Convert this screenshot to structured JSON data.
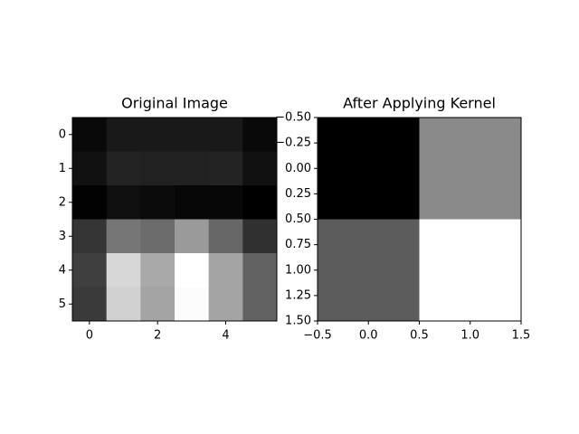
{
  "chart_data": [
    {
      "type": "heatmap",
      "title": "Original Image",
      "cmap": "gray",
      "values": [
        [
          12,
          28,
          28,
          28,
          28,
          12
        ],
        [
          20,
          38,
          36,
          36,
          38,
          20
        ],
        [
          5,
          18,
          14,
          10,
          10,
          3
        ],
        [
          55,
          120,
          110,
          155,
          105,
          50
        ],
        [
          65,
          215,
          170,
          255,
          165,
          100
        ],
        [
          60,
          210,
          165,
          252,
          165,
          100
        ]
      ],
      "xlim": [
        -0.5,
        5.5
      ],
      "ylim": [
        5.5,
        -0.5
      ],
      "xticks": [
        0,
        2,
        4
      ],
      "yticks": [
        0,
        1,
        2,
        3,
        4,
        5
      ]
    },
    {
      "type": "heatmap",
      "title": "After Applying Kernel",
      "cmap": "gray",
      "values": [
        [
          0,
          138
        ],
        [
          92,
          255
        ]
      ],
      "xlim": [
        -0.5,
        1.5
      ],
      "ylim": [
        1.5,
        -0.5
      ],
      "xticks": [
        {
          "value": -0.5,
          "label": "−0.5"
        },
        {
          "value": 0,
          "label": "0.0"
        },
        0.5,
        {
          "value": 1,
          "label": "1.0"
        },
        1.5
      ],
      "yticks": [
        {
          "value": -0.5,
          "label": "−0.50"
        },
        {
          "value": -0.25,
          "label": "−0.25"
        },
        {
          "value": 0,
          "label": "0.00"
        },
        {
          "value": 0.25,
          "label": "0.25"
        },
        {
          "value": 0.5,
          "label": "0.50"
        },
        {
          "value": 0.75,
          "label": "0.75"
        },
        {
          "value": 1,
          "label": "1.00"
        },
        {
          "value": 1.25,
          "label": "1.25"
        },
        {
          "value": 1.5,
          "label": "1.50"
        }
      ]
    }
  ]
}
